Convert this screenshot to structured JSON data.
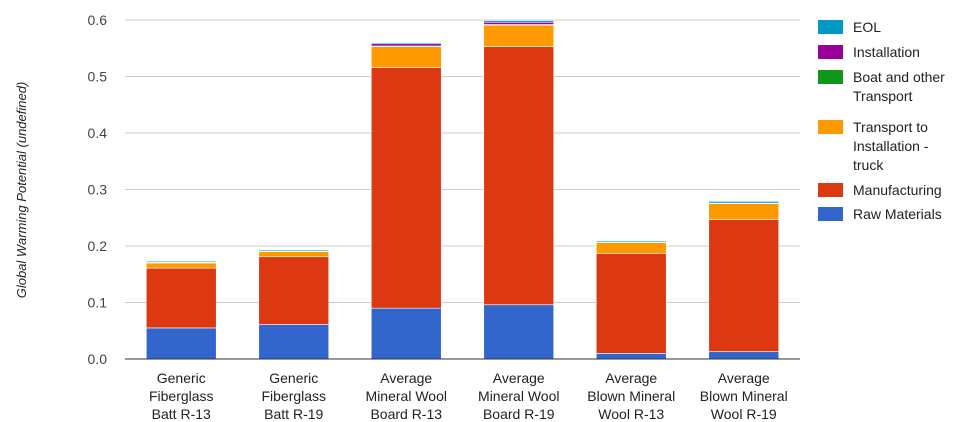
{
  "chart_data": {
    "type": "bar",
    "stacked": true,
    "ylabel": "Global Warming Potential (undefined)",
    "xlabel": "",
    "ylim": [
      0,
      0.6
    ],
    "yticks": [
      "0.0",
      "0.1",
      "0.2",
      "0.3",
      "0.4",
      "0.5",
      "0.6"
    ],
    "grid": true,
    "legend_position": "right",
    "categories": [
      [
        "Generic",
        "Fiberglass",
        "Batt R-13"
      ],
      [
        "Generic",
        "Fiberglass",
        "Batt R-19"
      ],
      [
        "Average",
        "Mineral Wool",
        "Board R-13"
      ],
      [
        "Average",
        "Mineral Wool",
        "Board R-19"
      ],
      [
        "Average",
        "Blown Mineral",
        "Wool R-13"
      ],
      [
        "Average",
        "Blown Mineral",
        "Wool R-19"
      ]
    ],
    "series": [
      {
        "name": "Raw Materials",
        "color": "#3366cc",
        "values": [
          0.055,
          0.061,
          0.09,
          0.096,
          0.01,
          0.013
        ]
      },
      {
        "name": "Manufacturing",
        "color": "#dc3912",
        "values": [
          0.106,
          0.12,
          0.426,
          0.457,
          0.177,
          0.234
        ]
      },
      {
        "name": "Transport to Installation - truck",
        "color": "#ff9900",
        "values": [
          0.009,
          0.009,
          0.037,
          0.038,
          0.019,
          0.028
        ]
      },
      {
        "name": "Boat and other Transport",
        "color": "#109618",
        "values": [
          0.001,
          0.001,
          0.001,
          0.001,
          0.001,
          0.001
        ]
      },
      {
        "name": "Installation",
        "color": "#990099",
        "values": [
          0.0,
          0.0,
          0.004,
          0.004,
          0.0,
          0.0
        ]
      },
      {
        "name": "EOL",
        "color": "#0099c6",
        "values": [
          0.002,
          0.002,
          0.002,
          0.003,
          0.002,
          0.003
        ]
      }
    ],
    "legend": [
      {
        "name": "EOL",
        "color": "#0099c6",
        "lines": [
          "EOL"
        ]
      },
      {
        "name": "Installation",
        "color": "#990099",
        "lines": [
          "Installation"
        ]
      },
      {
        "name": "Boat and other Transport",
        "color": "#109618",
        "lines": [
          "Boat and other",
          "Transport"
        ]
      },
      {
        "name": "Transport to Installation - truck",
        "color": "#ff9900",
        "lines": [
          "Transport to",
          "Installation -",
          "truck"
        ]
      },
      {
        "name": "Manufacturing",
        "color": "#dc3912",
        "lines": [
          "Manufacturing"
        ]
      },
      {
        "name": "Raw Materials",
        "color": "#3366cc",
        "lines": [
          "Raw Materials"
        ]
      }
    ]
  }
}
